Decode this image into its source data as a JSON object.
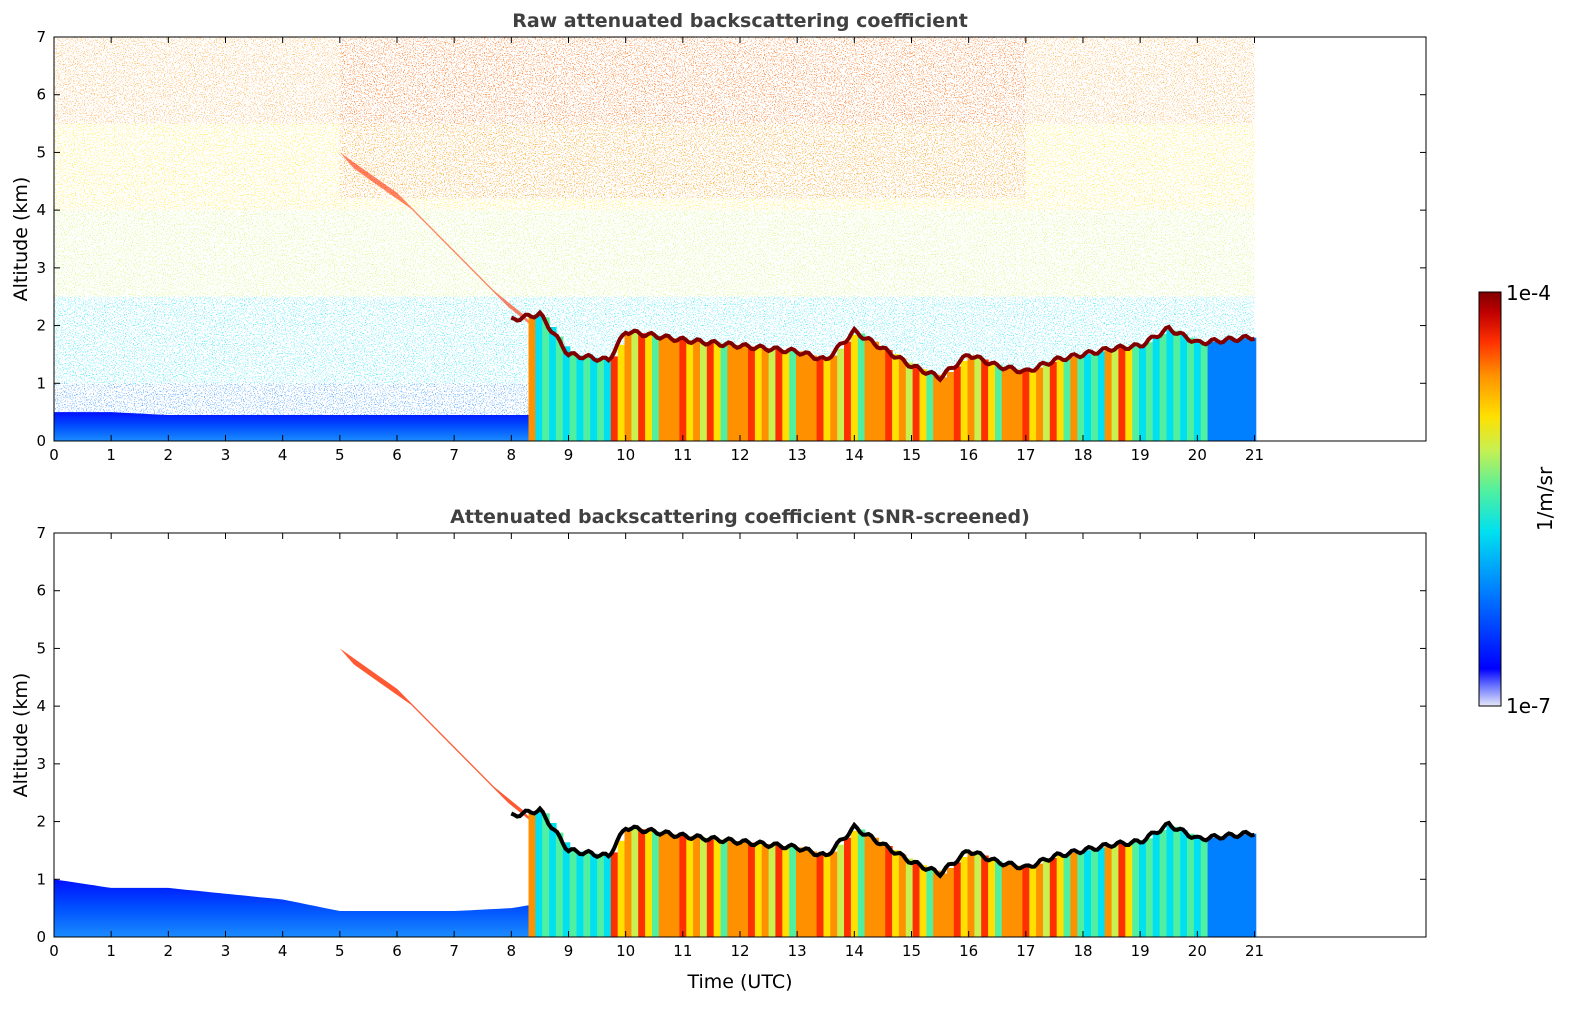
{
  "chart_data": [
    {
      "type": "heatmap",
      "title": "Raw attenuated backscattering coefficient",
      "xlabel": "",
      "ylabel": "Altitude (km)",
      "xlim": [
        0,
        24
      ],
      "ylim": [
        0,
        7
      ],
      "x_ticks": [
        "0",
        "1",
        "2",
        "3",
        "4",
        "5",
        "6",
        "7",
        "8",
        "9",
        "10",
        "11",
        "12",
        "13",
        "14",
        "15",
        "16",
        "17",
        "18",
        "19",
        "20",
        "21"
      ],
      "y_ticks": [
        "0",
        "1",
        "2",
        "3",
        "4",
        "5",
        "6",
        "7"
      ],
      "data_extent_hours": [
        0,
        21
      ],
      "screened": false,
      "grid": false,
      "features": [
        {
          "name": "boundary_layer_top_km",
          "x": [
            0,
            1,
            2,
            3,
            4,
            5,
            6,
            7,
            8,
            8.3
          ],
          "y": [
            0.5,
            0.5,
            0.45,
            0.45,
            0.45,
            0.45,
            0.45,
            0.45,
            0.45,
            0.45
          ]
        },
        {
          "name": "cloud_layer_km",
          "x": [
            8,
            8.5,
            9,
            9.7,
            10,
            11,
            12,
            13,
            13.5,
            14,
            14.5,
            15,
            15.5,
            16,
            16.5,
            17,
            17.5,
            18,
            18.5,
            19,
            19.5,
            20,
            20.5,
            21
          ],
          "y": [
            2.1,
            2.2,
            1.5,
            1.4,
            1.9,
            1.75,
            1.65,
            1.55,
            1.4,
            1.9,
            1.6,
            1.3,
            1.1,
            1.5,
            1.3,
            1.2,
            1.4,
            1.5,
            1.6,
            1.65,
            1.95,
            1.7,
            1.75,
            1.8
          ]
        },
        {
          "name": "aerosol_plume_top_km",
          "x": [
            5,
            6,
            7,
            7.7,
            8.2
          ],
          "y": [
            5.0,
            4.3,
            3.3,
            2.6,
            2.2
          ]
        }
      ]
    },
    {
      "type": "heatmap",
      "title": "Attenuated backscattering coefficient (SNR-screened)",
      "xlabel": "Time (UTC)",
      "ylabel": "Altitude (km)",
      "xlim": [
        0,
        24
      ],
      "ylim": [
        0,
        7
      ],
      "x_ticks": [
        "0",
        "1",
        "2",
        "3",
        "4",
        "5",
        "6",
        "7",
        "8",
        "9",
        "10",
        "11",
        "12",
        "13",
        "14",
        "15",
        "16",
        "17",
        "18",
        "19",
        "20",
        "21"
      ],
      "y_ticks": [
        "0",
        "1",
        "2",
        "3",
        "4",
        "5",
        "6",
        "7"
      ],
      "data_extent_hours": [
        0,
        21
      ],
      "screened": true,
      "grid": false,
      "features": [
        {
          "name": "boundary_layer_top_km",
          "x": [
            0,
            1,
            2,
            3,
            4,
            5,
            6,
            7,
            8,
            8.3
          ],
          "y": [
            1.0,
            0.85,
            0.85,
            0.75,
            0.65,
            0.45,
            0.45,
            0.45,
            0.5,
            0.55
          ]
        },
        {
          "name": "cloud_layer_km",
          "x": [
            8,
            8.5,
            9,
            9.7,
            10,
            11,
            12,
            13,
            13.5,
            14,
            14.5,
            15,
            15.5,
            16,
            16.5,
            17,
            17.5,
            18,
            18.5,
            19,
            19.5,
            20,
            20.5,
            21
          ],
          "y": [
            2.1,
            2.2,
            1.5,
            1.4,
            1.9,
            1.75,
            1.65,
            1.55,
            1.4,
            1.9,
            1.6,
            1.3,
            1.1,
            1.5,
            1.3,
            1.2,
            1.4,
            1.5,
            1.6,
            1.65,
            1.95,
            1.7,
            1.75,
            1.8
          ]
        },
        {
          "name": "aerosol_plume_top_km",
          "x": [
            5,
            6,
            7,
            7.7,
            8.2
          ],
          "y": [
            5.0,
            4.3,
            3.3,
            2.6,
            2.2
          ]
        }
      ]
    }
  ],
  "colorbar": {
    "max_label": "1e-4",
    "min_label": "1e-7",
    "unit_label": "1/m/sr",
    "scale": "log",
    "colormap": "jet",
    "colors": [
      "#e6e8f8",
      "#0000ff",
      "#0080ff",
      "#00e0f0",
      "#50f0a0",
      "#c8f050",
      "#ffe000",
      "#ff9000",
      "#ff3000",
      "#c00000",
      "#800000"
    ]
  }
}
